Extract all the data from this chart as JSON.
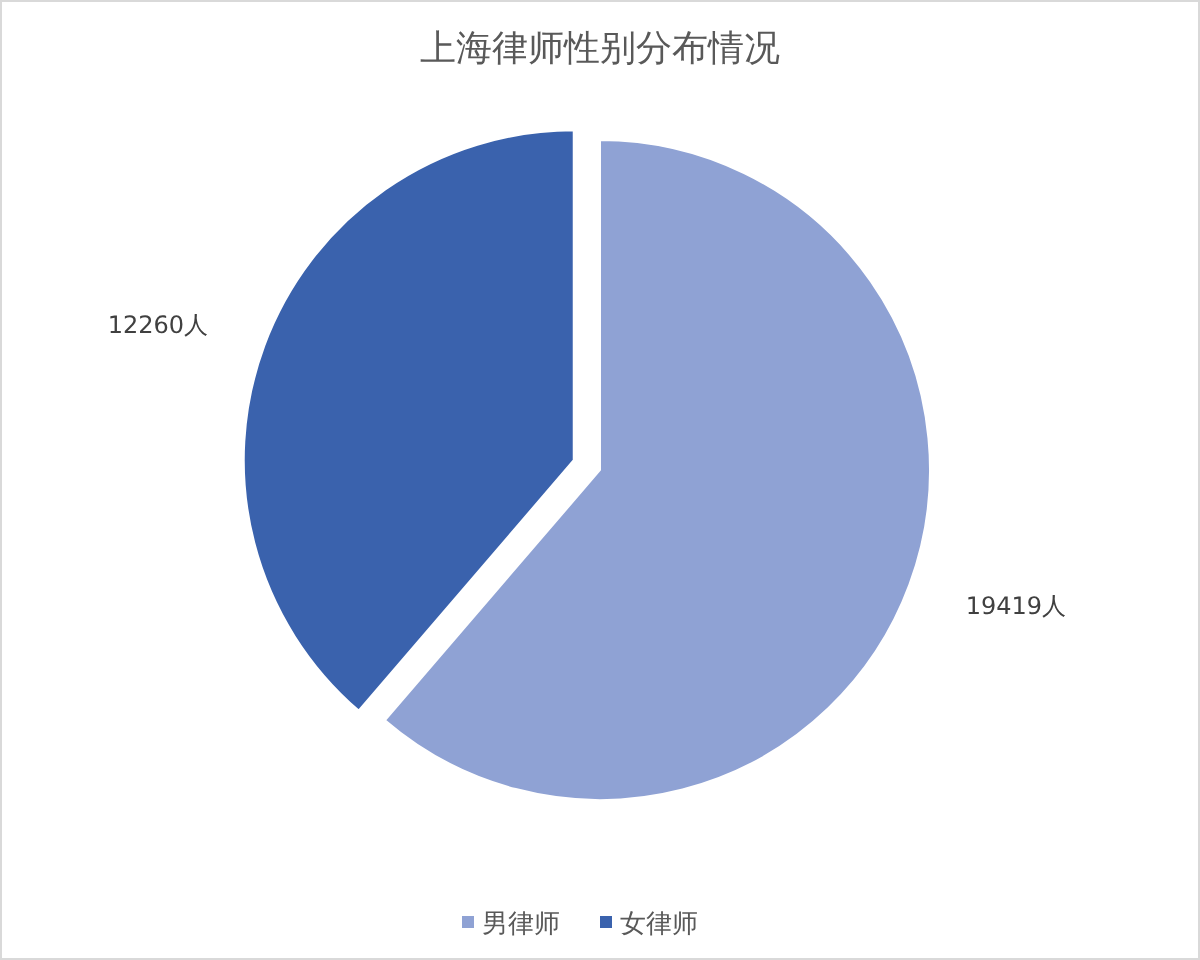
{
  "chart_data": {
    "type": "pie",
    "title": "上海律师性别分布情况",
    "categories": [
      "男律师",
      "女律师"
    ],
    "values": [
      19419,
      12260
    ],
    "colors": [
      "#8fa2d4",
      "#3a62ad"
    ],
    "value_labels": [
      "19419人",
      "12260人"
    ],
    "legend": "bottom"
  }
}
